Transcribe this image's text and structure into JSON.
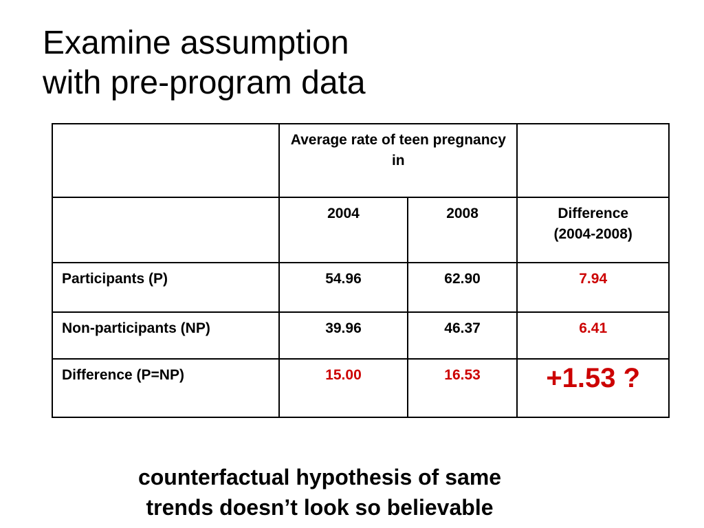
{
  "title": {
    "line1": "Examine assumption",
    "line2": "with pre-program data"
  },
  "table": {
    "header_group": "Average rate of teen pregnancy in",
    "columns": [
      "2004",
      "2008",
      "Difference\n(2004-2008)"
    ],
    "rows": [
      {
        "label": "Participants (P)",
        "v2004": "54.96",
        "v2008": "62.90",
        "diff": "7.94"
      },
      {
        "label": "Non-participants (NP)",
        "v2004": "39.96",
        "v2008": "46.37",
        "diff": "6.41"
      },
      {
        "label": "Difference (P=NP)",
        "v2004": "15.00",
        "v2008": "16.53",
        "diff": "+1.53 ?"
      }
    ]
  },
  "caption": {
    "line1": "counterfactual hypothesis of same",
    "line2": "trends doesn’t look so believable"
  },
  "colors": {
    "highlight": "#cc0000"
  }
}
